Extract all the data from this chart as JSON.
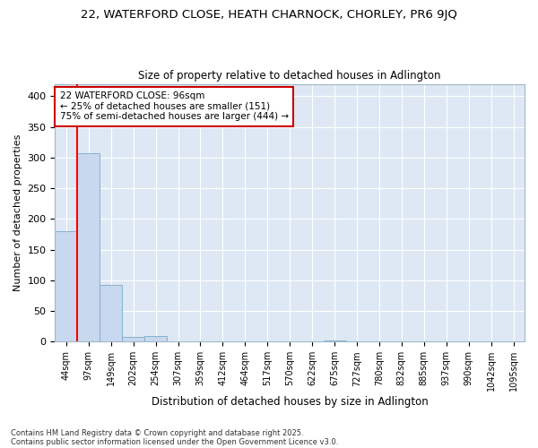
{
  "title": "22, WATERFORD CLOSE, HEATH CHARNOCK, CHORLEY, PR6 9JQ",
  "subtitle": "Size of property relative to detached houses in Adlington",
  "xlabel": "Distribution of detached houses by size in Adlington",
  "ylabel": "Number of detached properties",
  "bar_color": "#c8d8ee",
  "bar_edge_color": "#7aaacc",
  "background_color": "#dde8f4",
  "grid_color": "#ffffff",
  "fig_background": "#ffffff",
  "categories": [
    "44sqm",
    "97sqm",
    "149sqm",
    "202sqm",
    "254sqm",
    "307sqm",
    "359sqm",
    "412sqm",
    "464sqm",
    "517sqm",
    "570sqm",
    "622sqm",
    "675sqm",
    "727sqm",
    "780sqm",
    "832sqm",
    "885sqm",
    "937sqm",
    "990sqm",
    "1042sqm",
    "1095sqm"
  ],
  "values": [
    180,
    307,
    93,
    8,
    9,
    0,
    0,
    0,
    0,
    0,
    0,
    0,
    2,
    0,
    0,
    0,
    0,
    0,
    0,
    1,
    1
  ],
  "red_line_x": 0.5,
  "annotation_text": "22 WATERFORD CLOSE: 96sqm\n← 25% of detached houses are smaller (151)\n75% of semi-detached houses are larger (444) →",
  "annotation_box_color": "#ffffff",
  "annotation_box_edge": "#cc0000",
  "footnote1": "Contains HM Land Registry data © Crown copyright and database right 2025.",
  "footnote2": "Contains public sector information licensed under the Open Government Licence v3.0.",
  "ylim": [
    0,
    420
  ],
  "title_fontsize": 9.5,
  "subtitle_fontsize": 8.5
}
